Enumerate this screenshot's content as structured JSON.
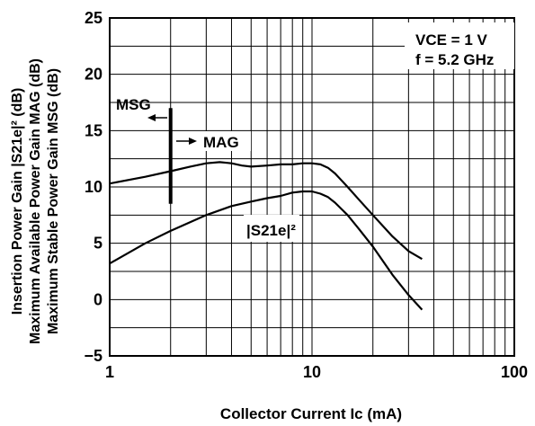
{
  "chart_data": {
    "type": "line",
    "x_scale": "log",
    "xlim": [
      1,
      100
    ],
    "ylim": [
      -5,
      25
    ],
    "x_ticks": [
      {
        "value": 1,
        "label": "1"
      },
      {
        "value": 10,
        "label": "10"
      },
      {
        "value": 100,
        "label": "100"
      }
    ],
    "y_ticks": [
      {
        "value": 25,
        "label": "25"
      },
      {
        "value": 20,
        "label": "20"
      },
      {
        "value": 15,
        "label": "15"
      },
      {
        "value": 10,
        "label": "10"
      },
      {
        "value": 5,
        "label": "5"
      },
      {
        "value": 0,
        "label": "0"
      },
      {
        "value": -5,
        "label": "−5"
      }
    ],
    "xlabel": "Collector Current  Ic (mA)",
    "ylabel_lines": [
      "Insertion Power Gain  |S21e|² (dB)",
      "Maximum Available Power Gain  MAG (dB)",
      "Maximum Stable Power Gain  MSG (dB)"
    ],
    "grid": true,
    "conditions": [
      "VCE = 1 V",
      "f = 5.2 GHz"
    ],
    "series": [
      {
        "name": "MSG / MAG",
        "x": [
          1,
          1.5,
          2,
          2.5,
          3,
          3.5,
          4,
          4.5,
          5,
          6,
          7,
          8,
          9,
          10,
          11,
          12,
          13,
          15,
          17,
          20,
          25,
          30,
          35
        ],
        "y": [
          10.3,
          10.9,
          11.4,
          11.8,
          12.1,
          12.2,
          12.1,
          11.9,
          11.8,
          11.9,
          12.0,
          12.0,
          12.1,
          12.1,
          12.0,
          11.7,
          11.2,
          10.0,
          8.9,
          7.5,
          5.6,
          4.3,
          3.6
        ]
      },
      {
        "name": "|S21e|²",
        "x": [
          1,
          1.5,
          2,
          3,
          4,
          5,
          6,
          7,
          8,
          9,
          10,
          11,
          12,
          13,
          15,
          17,
          20,
          25,
          30,
          35
        ],
        "y": [
          3.2,
          5.0,
          6.1,
          7.5,
          8.3,
          8.7,
          9.0,
          9.2,
          9.5,
          9.6,
          9.6,
          9.4,
          9.1,
          8.6,
          7.5,
          6.3,
          4.7,
          2.2,
          0.4,
          -0.9
        ]
      }
    ],
    "boundary": {
      "x": 2,
      "y_range": [
        8.5,
        17
      ]
    },
    "annotations": [
      {
        "text": "MSG",
        "arrow": "left"
      },
      {
        "text": "MAG",
        "arrow": "right"
      },
      {
        "text": "|S21e|²"
      }
    ]
  }
}
